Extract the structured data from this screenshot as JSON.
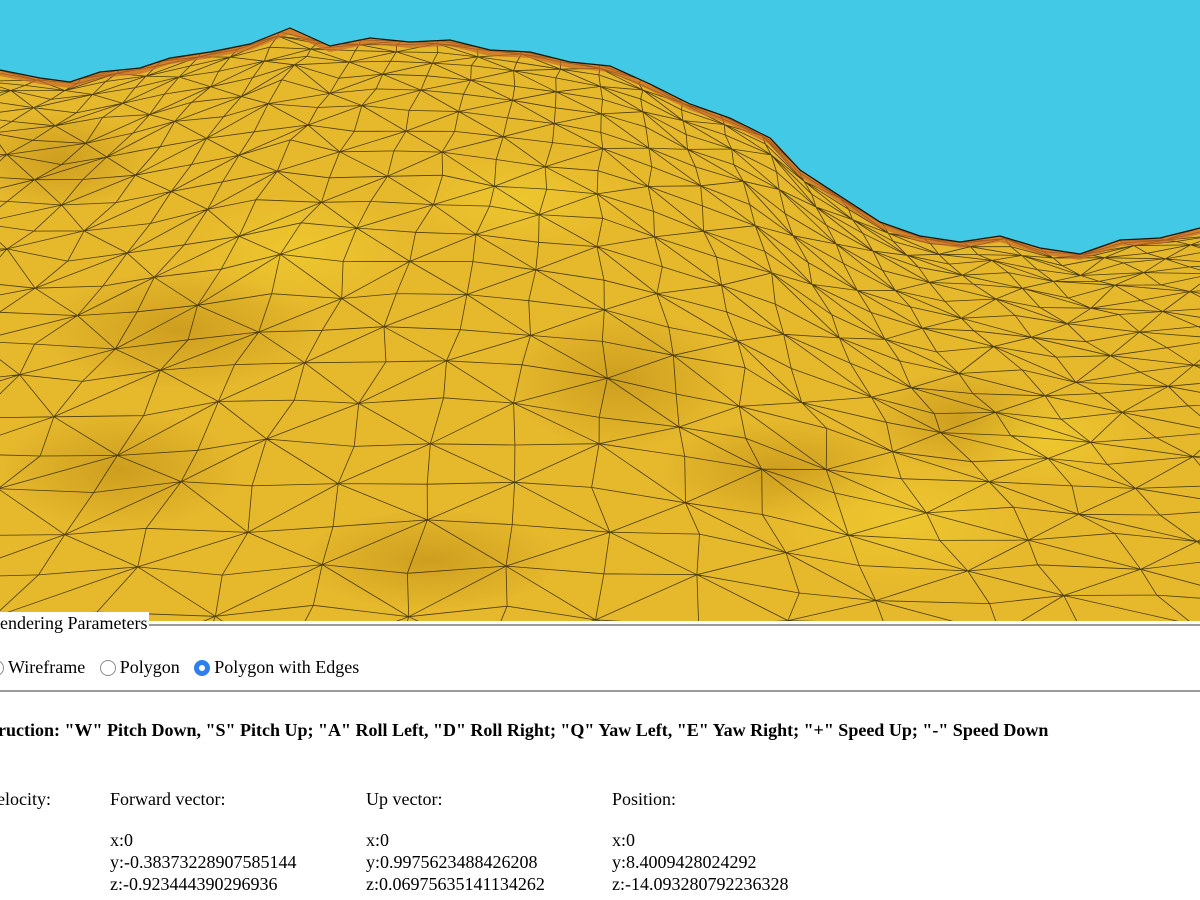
{
  "scene": {
    "sky_color": "#41c9e6",
    "terrain_color": "#e6b82c",
    "edge_color": "#1a1408",
    "ridge_color": "#c76a2a"
  },
  "rendering": {
    "legend": "Rendering Parameters",
    "options": [
      {
        "label": "Wireframe",
        "checked": false
      },
      {
        "label": "Polygon",
        "checked": false
      },
      {
        "label": "Polygon with Edges",
        "checked": true
      }
    ]
  },
  "instruction": "Instruction: \"W\" Pitch Down, \"S\" Pitch Up; \"A\" Roll Left, \"D\" Roll Right; \"Q\" Yaw Left, \"E\" Yaw Right; \"+\" Speed Up; \"-\" Speed Down",
  "readouts": {
    "velocity": {
      "label": "Velocity:"
    },
    "forward": {
      "label": "Forward vector:",
      "x": "x:0",
      "y": "y:-0.38373228907585144",
      "z": "z:-0.923444390296936"
    },
    "up": {
      "label": "Up vector:",
      "x": "x:0",
      "y": "y:0.9975623488426208",
      "z": "z:0.06975635141134262"
    },
    "position": {
      "label": "Position:",
      "x": "x:0",
      "y": "y:8.4009428024292",
      "z": "z:-14.093280792236328"
    }
  }
}
